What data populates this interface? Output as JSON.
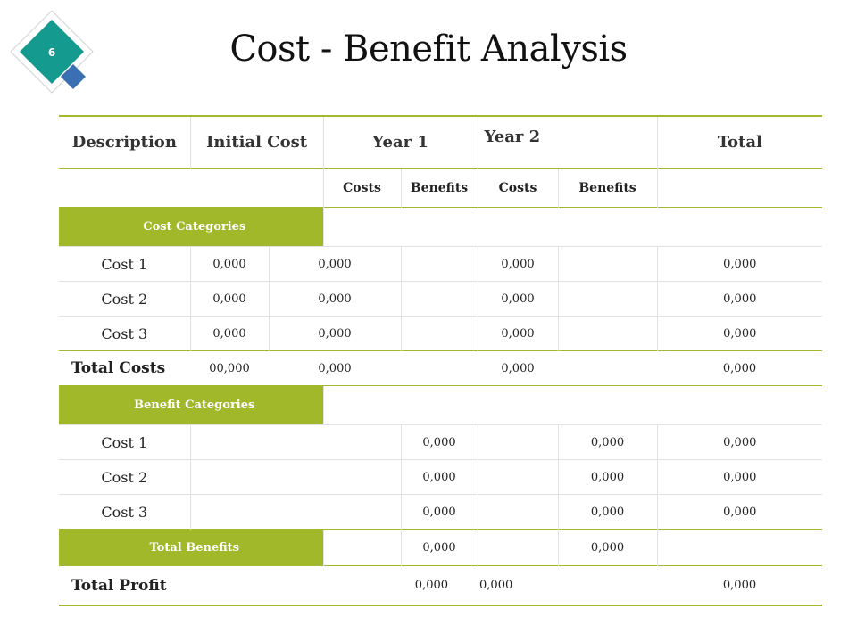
{
  "slide": {
    "number": "6",
    "title": "Cost - Benefit Analysis",
    "colors": {
      "accent_green": "#a2b82b",
      "badge_teal": "#159a8f",
      "badge_blue": "#3b6fb3"
    }
  },
  "table": {
    "headers": [
      "Description",
      "Initial Cost",
      "Year 1",
      "Year 2",
      "Total"
    ],
    "subheaders": [
      "Costs",
      "Benefits",
      "Costs",
      "Benefits"
    ],
    "cost_section": {
      "title": "Cost Categories",
      "rows": [
        {
          "label": "Cost 1",
          "initial": "0,000",
          "y1_costs": "0,000",
          "y2_costs": "0,000",
          "total": "0,000"
        },
        {
          "label": "Cost 2",
          "initial": "0,000",
          "y1_costs": "0,000",
          "y2_costs": "0,000",
          "total": "0,000"
        },
        {
          "label": "Cost 3",
          "initial": "0,000",
          "y1_costs": "0,000",
          "y2_costs": "0,000",
          "total": "0,000"
        }
      ],
      "total": {
        "label": "Total Costs",
        "initial": "00,000",
        "y1": "0,000",
        "y2": "0,000",
        "total": "0,000"
      }
    },
    "benefit_section": {
      "title": "Benefit Categories",
      "rows": [
        {
          "label": "Cost 1",
          "y1_benefits": "0,000",
          "y2_benefits": "0,000",
          "total": "0,000"
        },
        {
          "label": "Cost 2",
          "y1_benefits": "0,000",
          "y2_benefits": "0,000",
          "total": "0,000"
        },
        {
          "label": "Cost 3",
          "y1_benefits": "0,000",
          "y2_benefits": "0,000",
          "total": "0,000"
        }
      ],
      "total": {
        "label": "Total Benefits",
        "y1_benefits": "0,000",
        "y2_benefits": "0,000"
      }
    },
    "profit": {
      "label": "Total Profit",
      "y1": "0,000",
      "y2": "0,000",
      "total": "0,000"
    }
  }
}
